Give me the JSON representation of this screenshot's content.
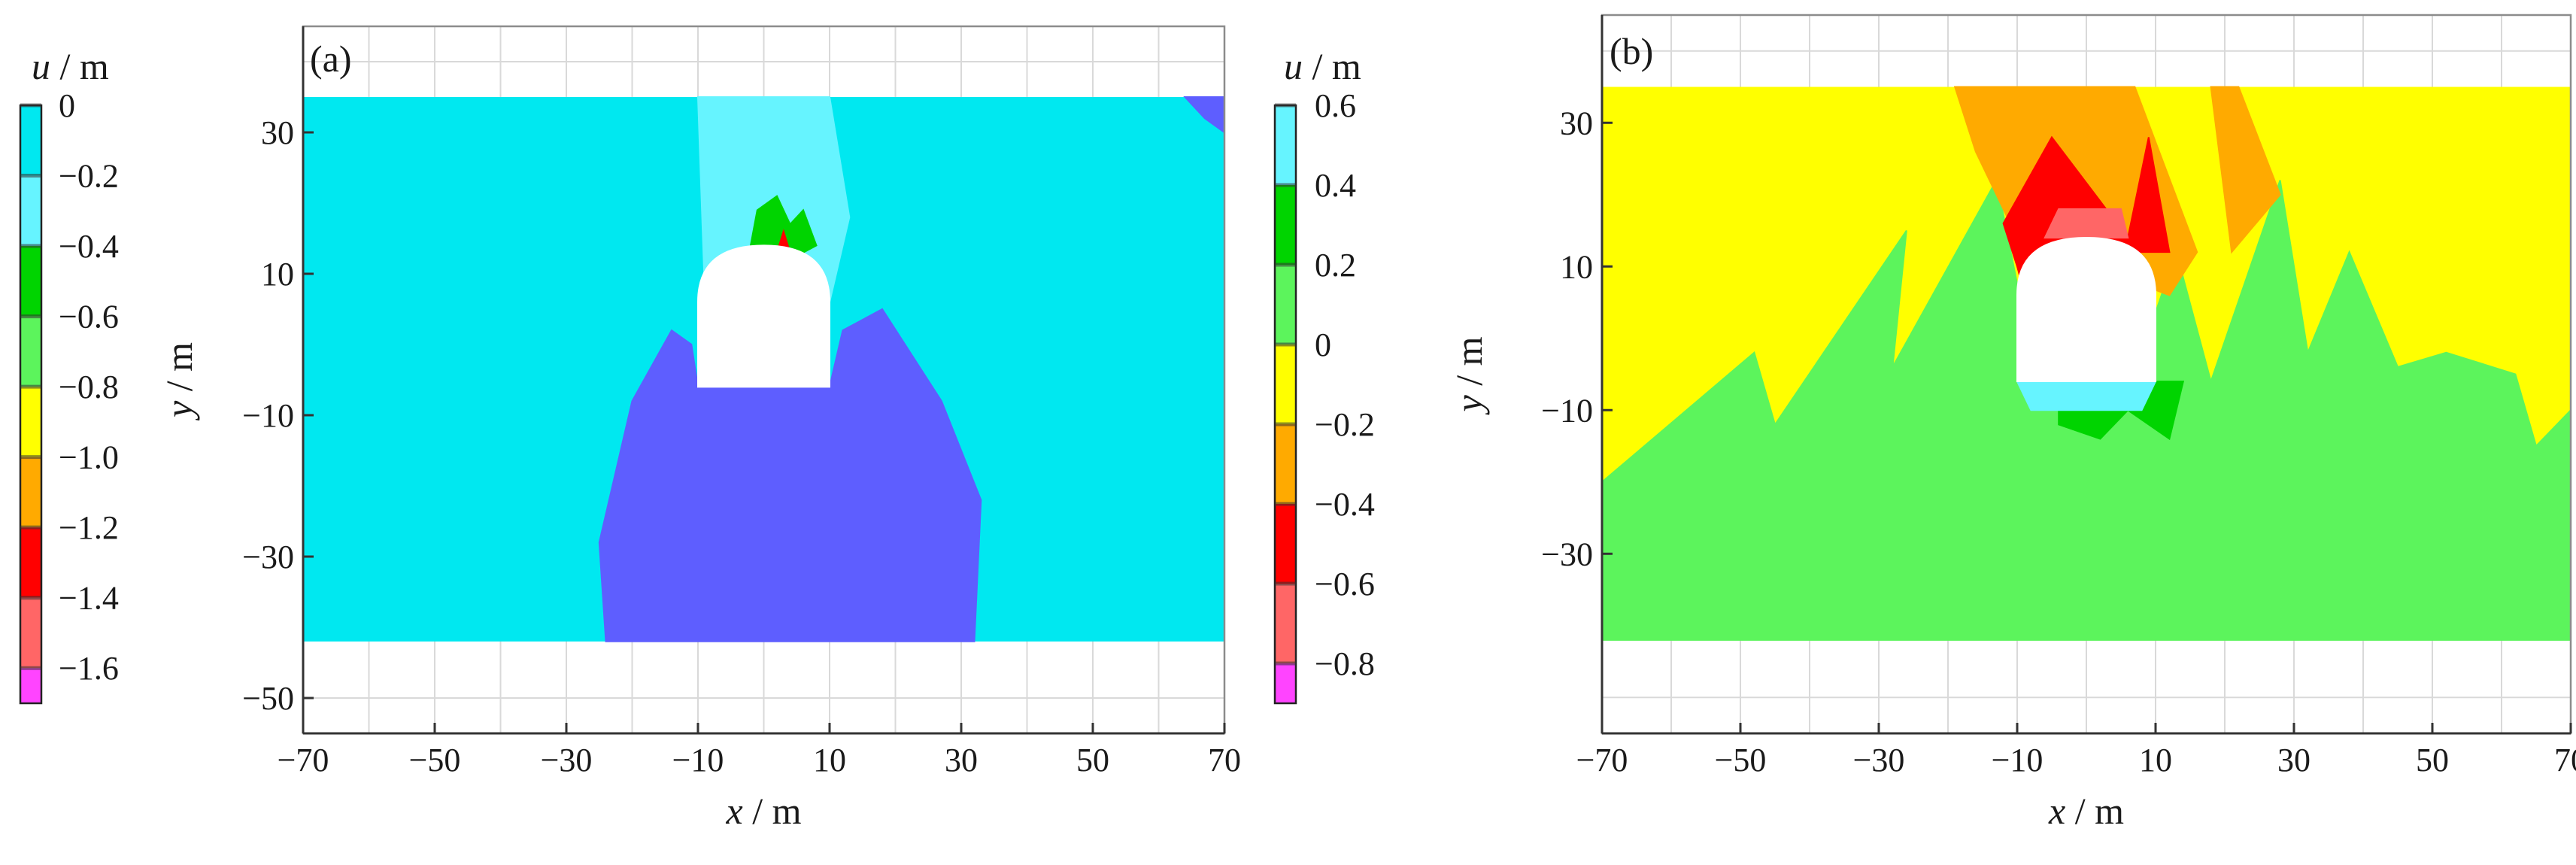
{
  "chart_data": [
    {
      "type": "heatmap",
      "panel_label": "(a)",
      "xlabel_var": "x",
      "xlabel_unit": " / m",
      "ylabel_var": "y",
      "ylabel_unit": " / m",
      "xlim": [
        -70,
        70
      ],
      "ylim": [
        -55,
        45
      ],
      "x_ticks": [
        -70,
        -50,
        -30,
        -10,
        10,
        30,
        50,
        70
      ],
      "y_ticks": [
        30,
        10,
        -10,
        -30,
        -50
      ],
      "grid": true,
      "colorbar": {
        "title_var": "u",
        "title_unit": " / m",
        "position": "left",
        "min": -1.7,
        "max": 0,
        "tick_values": [
          -1.6,
          -1.4,
          -1.2,
          -1.0,
          -0.8,
          -0.6,
          -0.4,
          -0.2,
          0
        ],
        "tick_labels": [
          "−1.6",
          "−1.4",
          "−1.2",
          "−1.0",
          "−0.8",
          "−0.6",
          "−0.4",
          "−0.2",
          "0"
        ],
        "bands": [
          {
            "from": 0.0,
            "to": -0.2,
            "color": "#00e8f0"
          },
          {
            "from": -0.2,
            "to": -0.4,
            "color": "#66f4ff"
          },
          {
            "from": -0.4,
            "to": -0.6,
            "color": "#00d400"
          },
          {
            "from": -0.6,
            "to": -0.8,
            "color": "#5cf45c"
          },
          {
            "from": -0.8,
            "to": -1.0,
            "color": "#ffff00"
          },
          {
            "from": -1.0,
            "to": -1.2,
            "color": "#ffaa00"
          },
          {
            "from": -1.2,
            "to": -1.4,
            "color": "#ff0000"
          },
          {
            "from": -1.4,
            "to": -1.6,
            "color": "#ff6666"
          },
          {
            "from": -1.6,
            "to": -1.7,
            "color": "#ff44ff"
          }
        ]
      },
      "field": {
        "domain_x": [
          -70,
          70
        ],
        "domain_y": [
          -42,
          35
        ],
        "background_color": "#00e8f0",
        "regions": [
          {
            "color": "#5e5eff",
            "points": [
              [
                -24,
                -42
              ],
              [
                32,
                -42
              ],
              [
                33,
                -22
              ],
              [
                27,
                -8
              ],
              [
                18,
                5
              ],
              [
                12,
                2
              ],
              [
                10,
                -6
              ],
              [
                -10,
                -6
              ],
              [
                -11,
                0
              ],
              [
                -14,
                2
              ],
              [
                -20,
                -8
              ],
              [
                -25,
                -28
              ]
            ]
          },
          {
            "color": "#66f4ff",
            "points": [
              [
                -9,
                8
              ],
              [
                -10,
                35
              ],
              [
                10,
                35
              ],
              [
                13,
                18
              ],
              [
                10,
                6
              ],
              [
                -3,
                12
              ]
            ]
          },
          {
            "color": "#00d400",
            "points": [
              [
                -2,
                14
              ],
              [
                -1,
                19
              ],
              [
                2,
                21
              ],
              [
                4,
                17
              ],
              [
                6,
                19
              ],
              [
                8,
                14
              ],
              [
                4,
                12
              ]
            ]
          },
          {
            "color": "#ff0000",
            "points": [
              [
                2,
                13
              ],
              [
                3,
                16
              ],
              [
                4,
                13
              ]
            ]
          },
          {
            "color": "#5e5eff",
            "points": [
              [
                64,
                35
              ],
              [
                70,
                35
              ],
              [
                70,
                30
              ],
              [
                67,
                32
              ]
            ]
          }
        ],
        "excavation": {
          "x": [
            -10,
            10
          ],
          "y": [
            -6,
            6
          ],
          "crown_top": 14
        }
      }
    },
    {
      "type": "heatmap",
      "panel_label": "(b)",
      "xlabel_var": "x",
      "xlabel_unit": " / m",
      "ylabel_var": "y",
      "ylabel_unit": " / m",
      "xlim": [
        -70,
        70
      ],
      "ylim": [
        -55,
        45
      ],
      "x_ticks": [
        -70,
        -50,
        -30,
        -10,
        10,
        30,
        50,
        70
      ],
      "y_ticks": [
        30,
        10,
        -10,
        -30
      ],
      "grid": true,
      "colorbar": {
        "title_var": "u",
        "title_unit": " / m",
        "position": "left",
        "min": -0.9,
        "max": 0.6,
        "tick_values": [
          -0.8,
          -0.6,
          -0.4,
          -0.2,
          0,
          0.2,
          0.4,
          0.6
        ],
        "tick_labels": [
          "−0.8",
          "−0.6",
          "−0.4",
          "−0.2",
          "0",
          "0.2",
          "0.4",
          "0.6"
        ],
        "bands": [
          {
            "from": -0.9,
            "to": -0.8,
            "color": "#ff44ff"
          },
          {
            "from": -0.8,
            "to": -0.6,
            "color": "#ff6666"
          },
          {
            "from": -0.6,
            "to": -0.4,
            "color": "#ff0000"
          },
          {
            "from": -0.4,
            "to": -0.2,
            "color": "#ffaa00"
          },
          {
            "from": -0.2,
            "to": 0.0,
            "color": "#ffff00"
          },
          {
            "from": 0.0,
            "to": 0.2,
            "color": "#5cf45c"
          },
          {
            "from": 0.2,
            "to": 0.4,
            "color": "#00d400"
          },
          {
            "from": 0.4,
            "to": 0.6,
            "color": "#66f4ff"
          }
        ]
      },
      "field": {
        "domain_x": [
          -70,
          70
        ],
        "domain_y": [
          -42,
          35
        ],
        "background_color": "#ffff00",
        "regions": [
          {
            "color": "#5cf45c",
            "points": [
              [
                -70,
                -42
              ],
              [
                -70,
                -20
              ],
              [
                -48,
                -2
              ],
              [
                -45,
                -12
              ],
              [
                -26,
                15
              ],
              [
                -28,
                -4
              ],
              [
                -13,
                22
              ],
              [
                -8,
                -2
              ],
              [
                8,
                -2
              ],
              [
                13,
                12
              ],
              [
                18,
                -6
              ],
              [
                28,
                22
              ],
              [
                32,
                -2
              ],
              [
                38,
                12
              ],
              [
                45,
                -4
              ],
              [
                52,
                -2
              ],
              [
                62,
                -5
              ],
              [
                65,
                -15
              ],
              [
                70,
                -10
              ],
              [
                70,
                -42
              ]
            ]
          },
          {
            "color": "#ffaa00",
            "points": [
              [
                -19,
                35
              ],
              [
                7,
                35
              ],
              [
                16,
                12
              ],
              [
                12,
                6
              ],
              [
                -10,
                14
              ],
              [
                -16,
                26
              ]
            ]
          },
          {
            "color": "#ffaa00",
            "points": [
              [
                18,
                35
              ],
              [
                22,
                35
              ],
              [
                28,
                20
              ],
              [
                21,
                12
              ]
            ]
          },
          {
            "color": "#ff0000",
            "points": [
              [
                -12,
                16
              ],
              [
                -10,
                10
              ],
              [
                -8,
                3
              ],
              [
                4,
                12
              ],
              [
                12,
                12
              ],
              [
                9,
                28
              ],
              [
                6,
                14
              ],
              [
                -5,
                28
              ]
            ]
          },
          {
            "color": "#ff6666",
            "points": [
              [
                -6,
                14
              ],
              [
                -4,
                18
              ],
              [
                5,
                18
              ],
              [
                6,
                14
              ]
            ]
          },
          {
            "color": "#00d400",
            "points": [
              [
                -4,
                -12
              ],
              [
                -4,
                -6
              ],
              [
                14,
                -6
              ],
              [
                12,
                -14
              ],
              [
                6,
                -10
              ],
              [
                2,
                -14
              ]
            ]
          },
          {
            "color": "#66f4ff",
            "points": [
              [
                -10,
                -6
              ],
              [
                -8,
                -10
              ],
              [
                8,
                -10
              ],
              [
                10,
                -6
              ]
            ]
          }
        ],
        "excavation": {
          "x": [
            -10,
            10
          ],
          "y": [
            -6,
            6
          ],
          "crown_top": 14
        }
      }
    }
  ]
}
